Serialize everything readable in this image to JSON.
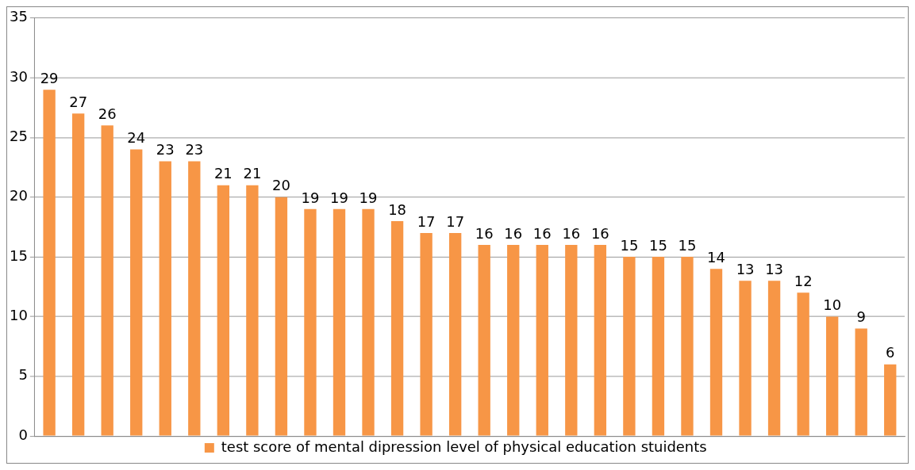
{
  "chart_data": {
    "type": "bar",
    "categories": [
      null,
      null,
      null,
      null,
      null,
      null,
      null,
      null,
      null,
      null,
      null,
      null,
      null,
      null,
      null,
      null,
      null,
      null,
      null,
      null,
      null,
      null,
      null,
      null,
      null,
      null,
      null,
      null,
      null,
      null
    ],
    "series": [
      {
        "name": "test score of mental dipression level of physical education stuidents",
        "color": "#f79646",
        "values": [
          29,
          27,
          26,
          24,
          23,
          23,
          21,
          21,
          20,
          19,
          19,
          19,
          18,
          17,
          17,
          16,
          16,
          16,
          16,
          16,
          15,
          15,
          15,
          14,
          13,
          13,
          12,
          10,
          9,
          6
        ]
      }
    ],
    "ylim": [
      0,
      35
    ],
    "yticks": [
      0,
      5,
      10,
      15,
      20,
      25,
      30,
      35
    ],
    "grid": "y",
    "legend": "bottom",
    "data_labels": true,
    "tick_labels": "y"
  }
}
